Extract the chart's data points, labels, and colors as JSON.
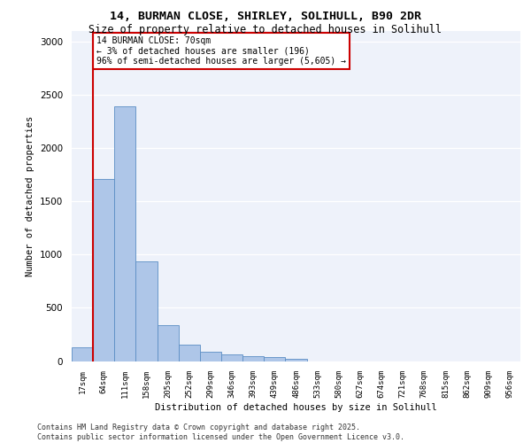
{
  "title_line1": "14, BURMAN CLOSE, SHIRLEY, SOLIHULL, B90 2DR",
  "title_line2": "Size of property relative to detached houses in Solihull",
  "xlabel": "Distribution of detached houses by size in Solihull",
  "ylabel": "Number of detached properties",
  "footer_line1": "Contains HM Land Registry data © Crown copyright and database right 2025.",
  "footer_line2": "Contains public sector information licensed under the Open Government Licence v3.0.",
  "bar_color": "#aec6e8",
  "bar_edge_color": "#5b8ec4",
  "vline_color": "#cc0000",
  "vline_x_index": 1,
  "annotation_text": "14 BURMAN CLOSE: 70sqm\n← 3% of detached houses are smaller (196)\n96% of semi-detached houses are larger (5,605) →",
  "annotation_box_color": "#cc0000",
  "categories": [
    "17sqm",
    "64sqm",
    "111sqm",
    "158sqm",
    "205sqm",
    "252sqm",
    "299sqm",
    "346sqm",
    "393sqm",
    "439sqm",
    "486sqm",
    "533sqm",
    "580sqm",
    "627sqm",
    "674sqm",
    "721sqm",
    "768sqm",
    "815sqm",
    "862sqm",
    "909sqm",
    "956sqm"
  ],
  "values": [
    130,
    1710,
    2390,
    940,
    340,
    155,
    90,
    65,
    45,
    35,
    20,
    0,
    0,
    0,
    0,
    0,
    0,
    0,
    0,
    0,
    0
  ],
  "ylim": [
    0,
    3100
  ],
  "yticks": [
    0,
    500,
    1000,
    1500,
    2000,
    2500,
    3000
  ],
  "background_color": "#eef2fa",
  "grid_color": "#ffffff"
}
